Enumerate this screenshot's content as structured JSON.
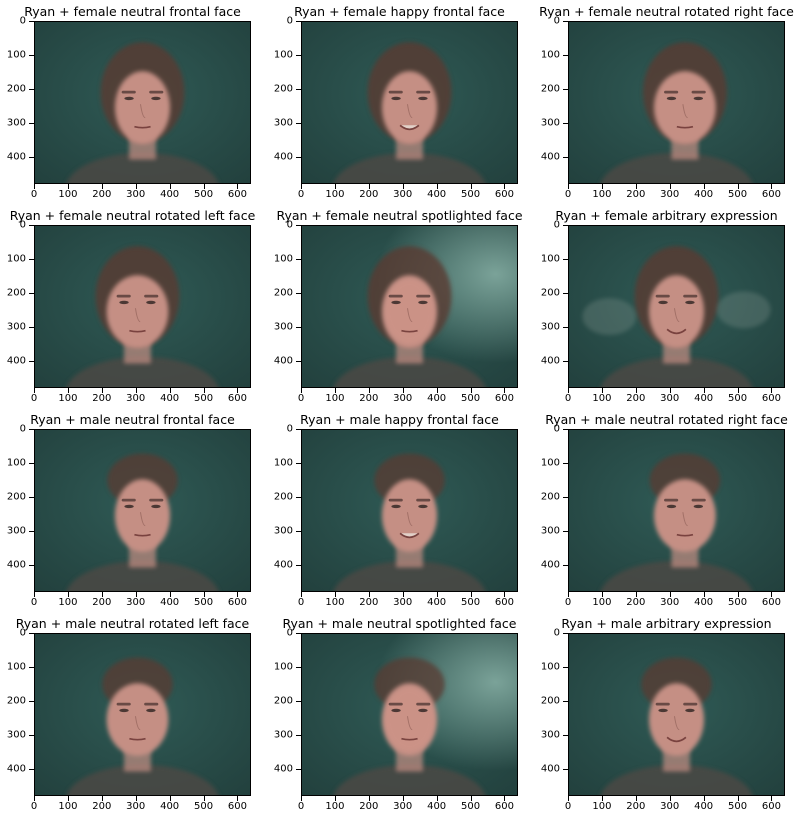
{
  "figure": {
    "panels": [
      {
        "title": "Ryan + female neutral frontal face",
        "gender": "female",
        "pose": "frontal",
        "expression": "neutral",
        "lighting": "normal"
      },
      {
        "title": "Ryan + female happy frontal face",
        "gender": "female",
        "pose": "frontal",
        "expression": "happy",
        "lighting": "normal"
      },
      {
        "title": "Ryan + female neutral rotated right face",
        "gender": "female",
        "pose": "right",
        "expression": "neutral",
        "lighting": "normal"
      },
      {
        "title": "Ryan + female neutral rotated left face",
        "gender": "female",
        "pose": "left",
        "expression": "neutral",
        "lighting": "normal"
      },
      {
        "title": "Ryan + female neutral spotlighted face",
        "gender": "female",
        "pose": "frontal",
        "expression": "neutral",
        "lighting": "spot"
      },
      {
        "title": "Ryan + female arbitrary expression",
        "gender": "female",
        "pose": "frontal",
        "expression": "arbitrary",
        "lighting": "normal"
      },
      {
        "title": "Ryan + male neutral frontal face",
        "gender": "male",
        "pose": "frontal",
        "expression": "neutral",
        "lighting": "normal"
      },
      {
        "title": "Ryan + male happy frontal face",
        "gender": "male",
        "pose": "frontal",
        "expression": "happy",
        "lighting": "normal"
      },
      {
        "title": "Ryan + male neutral rotated right face",
        "gender": "male",
        "pose": "right",
        "expression": "neutral",
        "lighting": "normal"
      },
      {
        "title": "Ryan + male neutral rotated left face",
        "gender": "male",
        "pose": "left",
        "expression": "neutral",
        "lighting": "normal"
      },
      {
        "title": "Ryan + male neutral spotlighted face",
        "gender": "male",
        "pose": "frontal",
        "expression": "neutral",
        "lighting": "spot"
      },
      {
        "title": "Ryan + male arbitrary expression",
        "gender": "male",
        "pose": "frontal",
        "expression": "arbitrary",
        "lighting": "normal"
      }
    ],
    "x_ticks": [
      "0",
      "100",
      "200",
      "300",
      "400",
      "500",
      "600"
    ],
    "y_ticks": [
      "0",
      "100",
      "200",
      "300",
      "400"
    ],
    "image_extent": {
      "x": [
        0,
        640
      ],
      "y": [
        0,
        480
      ]
    },
    "colors": {
      "background": "#2f5a55",
      "background_dark": "#22403d",
      "spot_light": "#7fa79d",
      "skin": "#c58f84",
      "hair": "#5a3a33",
      "shirt": "#4c4a45"
    }
  }
}
